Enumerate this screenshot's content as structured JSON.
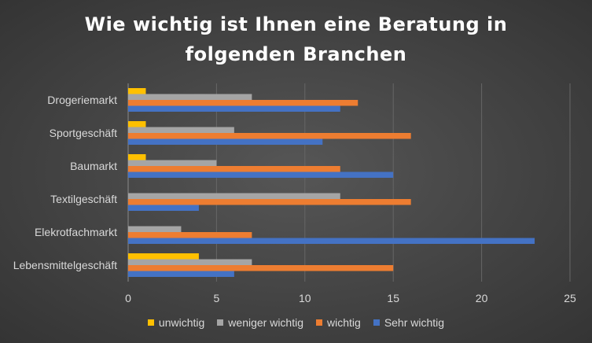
{
  "chart_data": {
    "type": "bar",
    "orientation": "horizontal",
    "title_lines": [
      "Wie wichtig ist Ihnen eine Beratung in",
      "folgenden Branchen"
    ],
    "categories": [
      "Drogeriemarkt",
      "Sportgeschäft",
      "Baumarkt",
      "Textilgeschäft",
      "Elekrotfachmarkt",
      "Lebensmittelgeschäft"
    ],
    "series": [
      {
        "name": "unwichtig",
        "color": "#ffc000",
        "values": [
          1,
          1,
          1,
          0,
          0,
          4
        ]
      },
      {
        "name": "weniger wichtig",
        "color": "#a5a5a5",
        "values": [
          7,
          6,
          5,
          12,
          3,
          7
        ]
      },
      {
        "name": "wichtig",
        "color": "#ed7d31",
        "values": [
          13,
          16,
          12,
          16,
          7,
          15
        ]
      },
      {
        "name": "Sehr wichtig",
        "color": "#4472c4",
        "values": [
          12,
          11,
          15,
          4,
          23,
          6
        ]
      }
    ],
    "xlim": [
      0,
      25
    ],
    "x_ticks": [
      0,
      5,
      10,
      15,
      20,
      25
    ],
    "grid": true,
    "legend_position": "bottom"
  }
}
